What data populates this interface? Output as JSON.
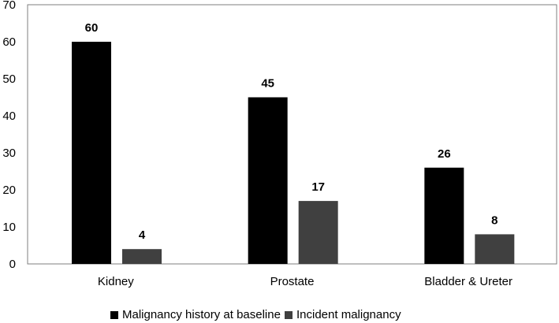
{
  "chart_data": {
    "type": "bar",
    "categories": [
      "Kidney",
      "Prostate",
      "Bladder & Ureter"
    ],
    "series": [
      {
        "name": "Malignancy history at baseline",
        "values": [
          60,
          45,
          26
        ],
        "color": "#000000"
      },
      {
        "name": "Incident malignancy",
        "values": [
          4,
          17,
          8
        ],
        "color": "#404040"
      }
    ],
    "ylim": [
      0,
      70
    ],
    "yticks": [
      0,
      10,
      20,
      30,
      40,
      50,
      60,
      70
    ],
    "grid": false,
    "legend_position": "bottom",
    "axis_color": "#7f7f7f",
    "title": "",
    "xlabel": "",
    "ylabel": ""
  }
}
